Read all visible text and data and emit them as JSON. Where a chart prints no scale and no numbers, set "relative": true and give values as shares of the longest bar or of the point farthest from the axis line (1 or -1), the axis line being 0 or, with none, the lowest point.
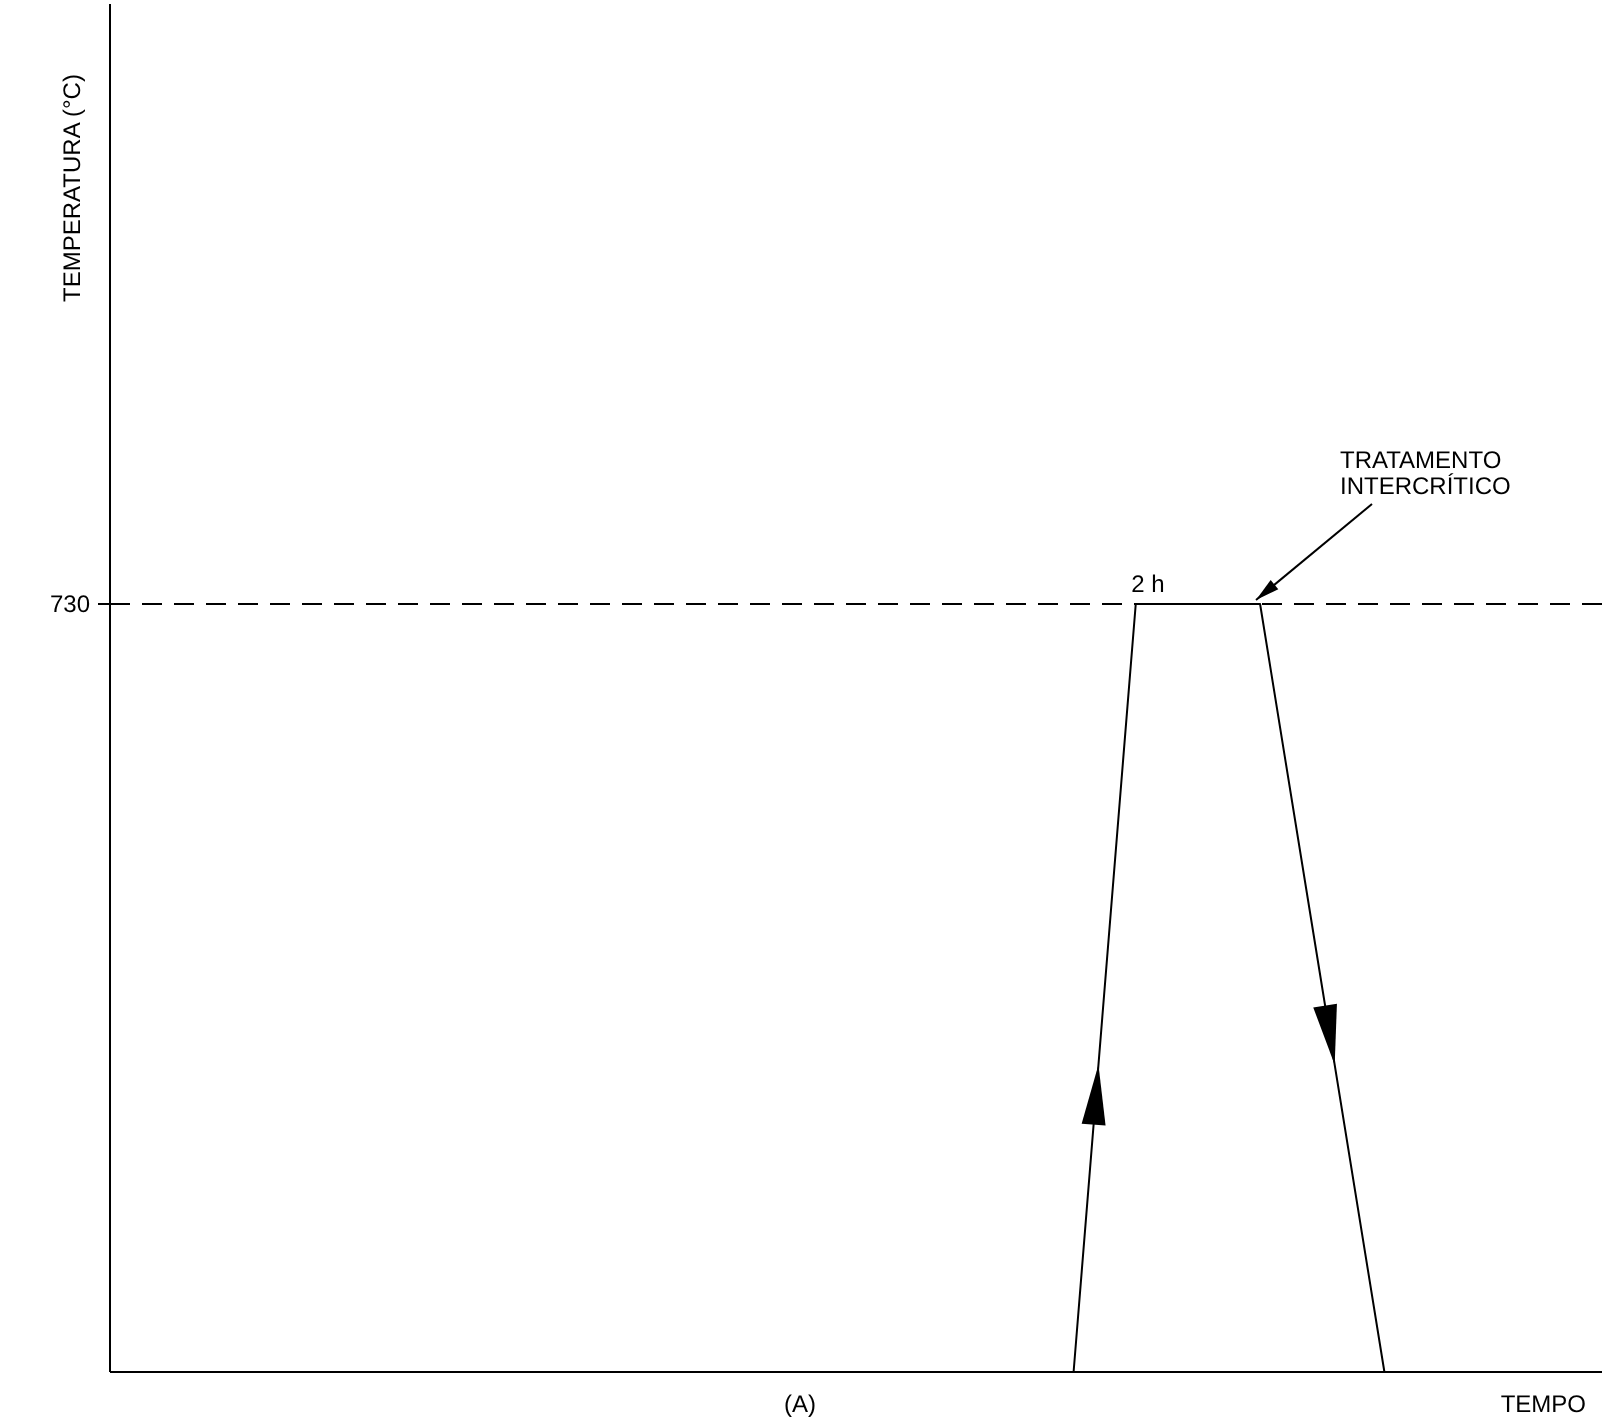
{
  "chart_data": {
    "type": "line",
    "relative": true,
    "xlabel": "TEMPO",
    "categories": [
      null,
      null,
      null,
      null,
      null,
      null,
      null,
      null,
      null,
      null,
      null,
      null,
      null,
      null,
      null,
      null,
      null,
      null,
      null,
      null,
      null,
      null,
      null,
      null
    ],
    "series": [
      {
        "color": "#000000",
        "values": [
          null,
          null,
          null,
          null,
          null,
          null,
          null,
          null,
          null,
          null,
          null,
          null,
          null,
          null,
          null,
          0,
          1,
          1,
          1,
          0.5,
          0,
          null,
          null,
          null
        ]
      }
    ],
    "ref_lines": [
      {
        "axis": "y",
        "value": 1,
        "line_style": "dashed",
        "color": "#000000"
      }
    ],
    "annotations": [
      "730",
      "2 h",
      "TRATAMENTO INTERCRÍTICO",
      "(A)",
      "TEMPERATURA (°C)"
    ],
    "marker": "none",
    "line_style": "solid"
  }
}
